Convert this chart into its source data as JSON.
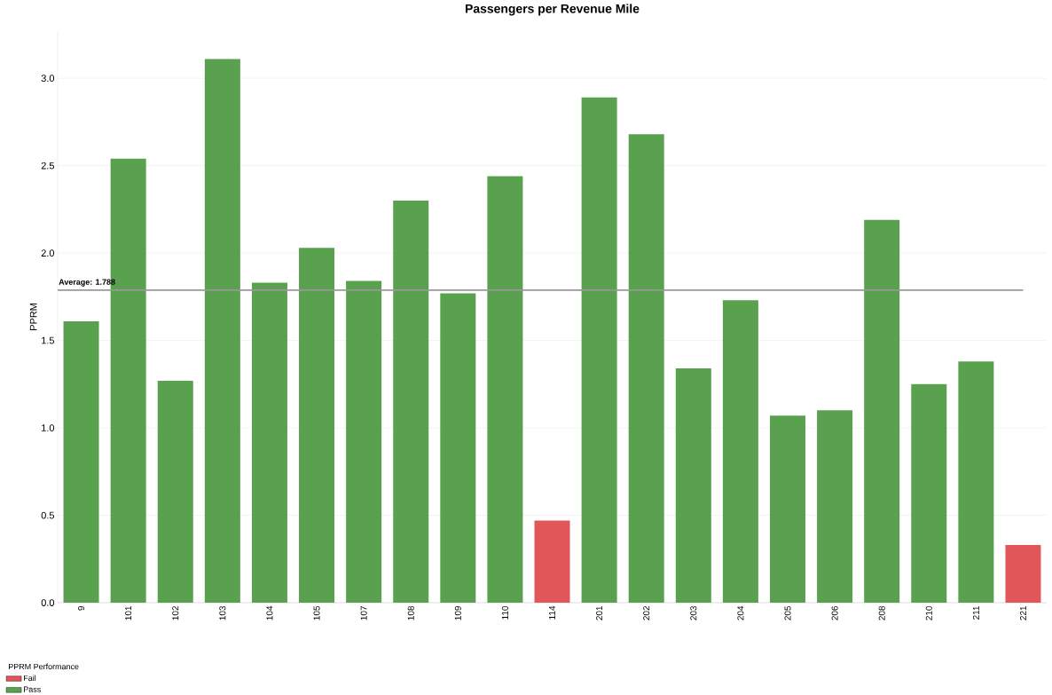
{
  "chart_data": {
    "type": "bar",
    "title": "Passengers per Revenue Mile",
    "ylabel": "PPRM",
    "legend_title": "PPRM Performance",
    "categories": [
      "9",
      "101",
      "102",
      "103",
      "104",
      "105",
      "107",
      "108",
      "109",
      "110",
      "114",
      "201",
      "202",
      "203",
      "204",
      "205",
      "206",
      "208",
      "210",
      "211",
      "221"
    ],
    "series": [
      {
        "name": "Fail",
        "color": "#e15759",
        "values": [
          null,
          null,
          null,
          null,
          null,
          null,
          null,
          null,
          null,
          null,
          0.47,
          null,
          null,
          null,
          null,
          null,
          null,
          null,
          null,
          null,
          0.33
        ]
      },
      {
        "name": "Pass",
        "color": "#59a14f",
        "values": [
          1.61,
          2.54,
          1.27,
          3.11,
          1.83,
          2.03,
          1.84,
          2.3,
          1.77,
          2.44,
          null,
          2.89,
          2.68,
          1.34,
          1.73,
          1.07,
          1.1,
          2.19,
          1.25,
          1.38,
          null
        ]
      }
    ],
    "ylim": [
      0,
      3.27
    ],
    "yticks": [
      {
        "value": 0,
        "label": "0.0"
      },
      0.5,
      {
        "value": 1,
        "label": "1.0"
      },
      1.5,
      {
        "value": 2,
        "label": "2.0"
      },
      2.5,
      {
        "value": 3,
        "label": "3.0"
      }
    ],
    "ref_lines": [
      {
        "axis": "y",
        "value": 1.788,
        "label": "Average: 1.788",
        "color": "#999999"
      }
    ],
    "grid": "y",
    "legend": "bottom left"
  }
}
